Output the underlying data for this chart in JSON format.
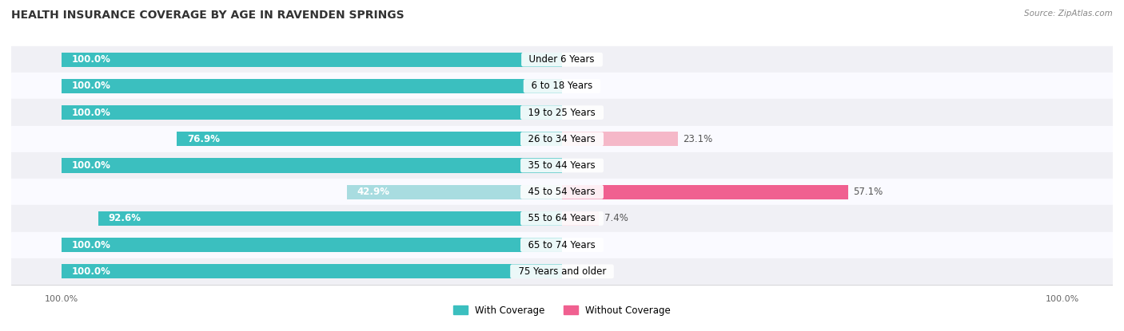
{
  "title": "HEALTH INSURANCE COVERAGE BY AGE IN RAVENDEN SPRINGS",
  "source": "Source: ZipAtlas.com",
  "categories": [
    "Under 6 Years",
    "6 to 18 Years",
    "19 to 25 Years",
    "26 to 34 Years",
    "35 to 44 Years",
    "45 to 54 Years",
    "55 to 64 Years",
    "65 to 74 Years",
    "75 Years and older"
  ],
  "with_coverage": [
    100.0,
    100.0,
    100.0,
    76.9,
    100.0,
    42.9,
    92.6,
    100.0,
    100.0
  ],
  "without_coverage": [
    0.0,
    0.0,
    0.0,
    23.1,
    0.0,
    57.1,
    7.4,
    0.0,
    0.0
  ],
  "color_with": "#3BBFBF",
  "color_without_strong": "#F06090",
  "color_without_light": "#F5B8C8",
  "color_with_light": "#A8DCE0",
  "bg_row_even": "#F0F0F5",
  "bg_row_odd": "#FAFAFF",
  "bar_height": 0.55,
  "label_fontsize": 8.5,
  "title_fontsize": 10,
  "axis_label_fontsize": 8
}
